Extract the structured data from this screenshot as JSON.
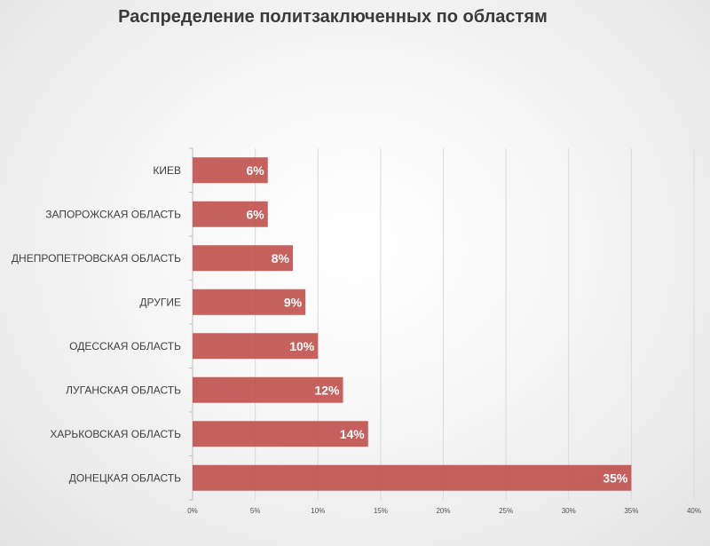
{
  "chart_data": {
    "type": "bar",
    "orientation": "horizontal",
    "title": "Распределение политзаключенных по областям",
    "categories": [
      "КИЕВ",
      "ЗАПОРОЖСКАЯ ОБЛАСТЬ",
      "ДНЕПРОПЕТРОВСКАЯ ОБЛАСТЬ",
      "ДРУГИЕ",
      "ОДЕССКАЯ ОБЛАСТЬ",
      "ЛУГАНСКАЯ ОБЛАСТЬ",
      "ХАРЬКОВСКАЯ ОБЛАСТЬ",
      "ДОНЕЦКАЯ ОБЛАСТЬ"
    ],
    "values": [
      6,
      6,
      8,
      9,
      10,
      12,
      14,
      35
    ],
    "data_labels": [
      "6%",
      "6%",
      "8%",
      "9%",
      "10%",
      "12%",
      "14%",
      "35%"
    ],
    "xlim": [
      0,
      40
    ],
    "xticks": [
      0,
      5,
      10,
      15,
      20,
      25,
      30,
      35,
      40
    ],
    "xtick_labels": [
      "0%",
      "5%",
      "10%",
      "15%",
      "20%",
      "25%",
      "30%",
      "35%",
      "40%"
    ],
    "xlabel": "",
    "ylabel": "",
    "grid": "vertical",
    "legend": "none",
    "bar_color": "#c0504d"
  }
}
